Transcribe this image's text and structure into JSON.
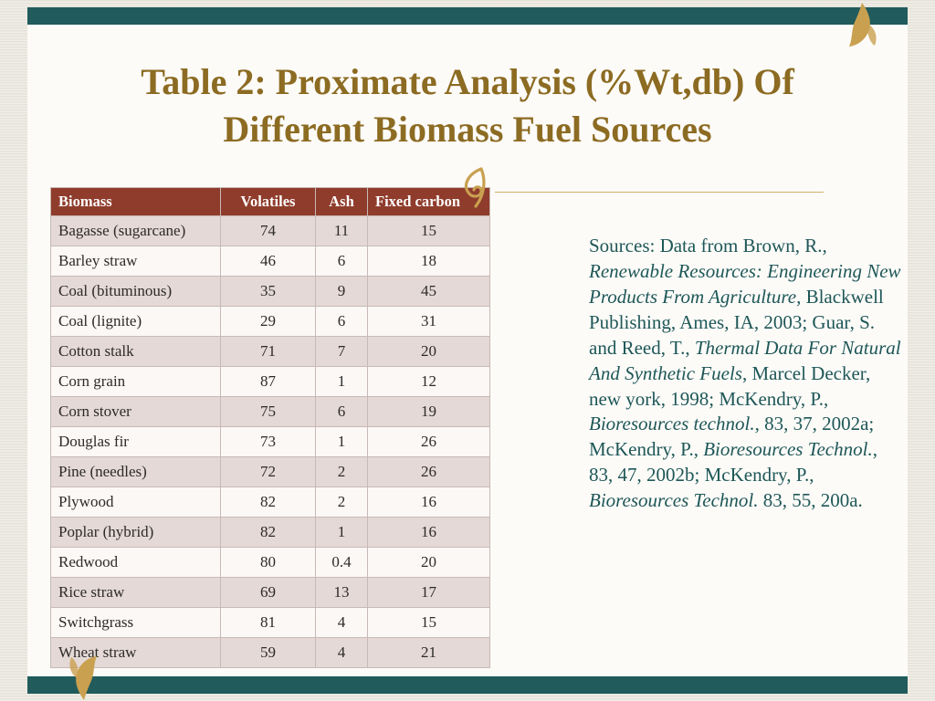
{
  "slide": {
    "title": "Table 2: Proximate Analysis (%Wt,db) Of Different Biomass Fuel Sources"
  },
  "table": {
    "headers": [
      "Biomass",
      "Volatiles",
      "Ash",
      "Fixed carbon"
    ],
    "column_aligns": [
      "left",
      "center",
      "center",
      "left"
    ],
    "rows": [
      [
        "Bagasse (sugarcane)",
        "74",
        "11",
        "15"
      ],
      [
        "Barley straw",
        "46",
        "6",
        "18"
      ],
      [
        "Coal (bituminous)",
        "35",
        "9",
        "45"
      ],
      [
        "Coal (lignite)",
        "29",
        "6",
        "31"
      ],
      [
        "Cotton stalk",
        "71",
        "7",
        "20"
      ],
      [
        "Corn grain",
        "87",
        "1",
        "12"
      ],
      [
        "Corn stover",
        "75",
        "6",
        "19"
      ],
      [
        "Douglas fir",
        "73",
        "1",
        "26"
      ],
      [
        "Pine (needles)",
        "72",
        "2",
        "26"
      ],
      [
        "Plywood",
        "82",
        "2",
        "16"
      ],
      [
        "Poplar (hybrid)",
        "82",
        "1",
        "16"
      ],
      [
        "Redwood",
        "80",
        "0.4",
        "20"
      ],
      [
        "Rice straw",
        "69",
        "13",
        "17"
      ],
      [
        "Switchgrass",
        "81",
        "4",
        "15"
      ],
      [
        "Wheat straw",
        "59",
        "4",
        "21"
      ]
    ]
  },
  "sources": {
    "segments": [
      {
        "text": "Sources: Data from Brown, R., ",
        "italic": false
      },
      {
        "text": "Renewable Resources: Engineering New Products From Agriculture,",
        "italic": true
      },
      {
        "text": " Blackwell Publishing, Ames, IA, 2003; Guar, S. and Reed, T., ",
        "italic": false
      },
      {
        "text": "Thermal Data For Natural And Synthetic Fuels",
        "italic": true
      },
      {
        "text": ", Marcel Decker, new york, 1998; McKendry, P., ",
        "italic": false
      },
      {
        "text": "Bioresources technol.",
        "italic": true
      },
      {
        "text": ", 83, 37, 2002a; McKendry, P., ",
        "italic": false
      },
      {
        "text": "Bioresources Technol.",
        "italic": true
      },
      {
        "text": ", 83, 47, 2002b; McKendry, P., ",
        "italic": false
      },
      {
        "text": "Bioresources Technol.",
        "italic": true
      },
      {
        "text": " 83, 55, 200a.",
        "italic": false
      }
    ]
  },
  "colors": {
    "accent_teal": "#215b5c",
    "title_gold": "#8c6b22",
    "header_maroon": "#8f3c2c",
    "band_pink": "#e4d9d6",
    "row_white": "#fbf8f6",
    "grid_line": "#c8b9b4",
    "sources_teal": "#1e5757",
    "ornament_gold": "#c9a050"
  }
}
